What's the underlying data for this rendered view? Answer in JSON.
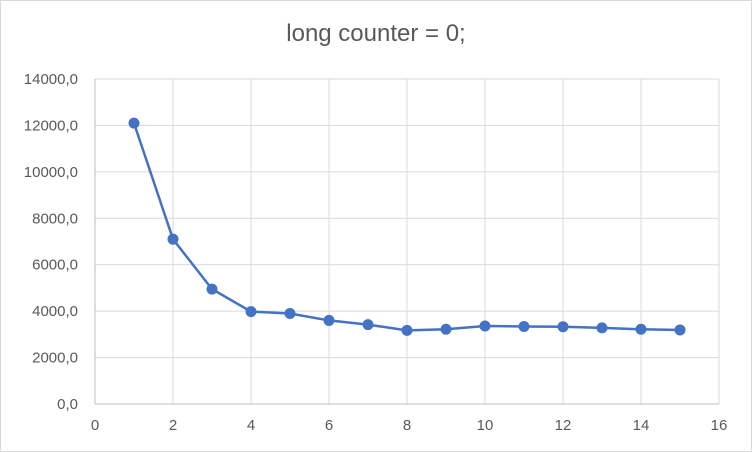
{
  "chart_data": {
    "type": "scatter",
    "title": "long counter = 0;",
    "xlabel": "",
    "ylabel": "",
    "xlim": [
      0,
      16
    ],
    "ylim": [
      0,
      14000
    ],
    "x_ticks": [
      0,
      2,
      4,
      6,
      8,
      10,
      12,
      14,
      16
    ],
    "y_ticks": [
      0,
      2000,
      4000,
      6000,
      8000,
      10000,
      12000,
      14000
    ],
    "x_tick_labels": [
      "0",
      "2",
      "4",
      "6",
      "8",
      "10",
      "12",
      "14",
      "16"
    ],
    "y_tick_labels": [
      "0,0",
      "2000,0",
      "4000,0",
      "6000,0",
      "8000,0",
      "10000,0",
      "12000,0",
      "14000,0"
    ],
    "grid": true,
    "legend": "none",
    "series_color": "#4472C4",
    "series": [
      {
        "x": [
          1,
          2,
          3,
          4,
          5,
          6,
          7,
          8,
          9,
          10,
          11,
          12,
          13,
          14,
          15
        ],
        "y": [
          12100,
          7100,
          4950,
          3980,
          3900,
          3600,
          3420,
          3170,
          3220,
          3360,
          3340,
          3330,
          3280,
          3220,
          3190
        ]
      }
    ]
  }
}
